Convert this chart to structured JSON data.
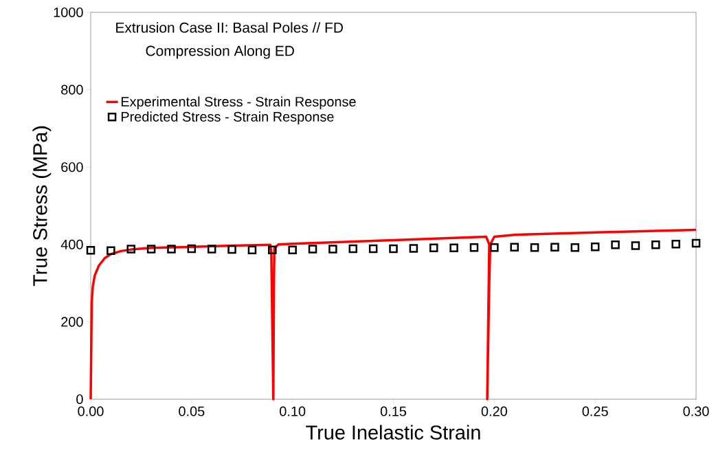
{
  "chart_data": {
    "type": "line",
    "xlabel": "True Inelastic Strain",
    "ylabel": "True Stress (MPa)",
    "annotations": [
      "Extrusion Case II: Basal Poles // FD",
      "Compression Along ED"
    ],
    "xlim": [
      0,
      0.3
    ],
    "ylim": [
      0,
      1000
    ],
    "xticks": [
      {
        "value": 0,
        "label": "0.00"
      },
      {
        "value": 0.05,
        "label": "0.05"
      },
      {
        "value": 0.1,
        "label": "0.10"
      },
      {
        "value": 0.15,
        "label": "0.15"
      },
      {
        "value": 0.2,
        "label": "0.20"
      },
      {
        "value": 0.25,
        "label": "0.25"
      },
      {
        "value": 0.3,
        "label": "0.30"
      }
    ],
    "yticks": [
      0,
      200,
      400,
      600,
      800,
      1000
    ],
    "grid": false,
    "legend": "top left",
    "series": [
      {
        "name": "Experimental Stress - Strain Response",
        "color": "#ff0000",
        "x": [
          0,
          0.0003,
          0.0005,
          0.001,
          0.002,
          0.004,
          0.007,
          0.01,
          0.015,
          0.02,
          0.03,
          0.05,
          0.07,
          0.089,
          0.0895,
          0.0905,
          0.0908,
          0.091,
          0.093,
          0.1,
          0.15,
          0.196,
          0.1975,
          0.1965,
          0.1975,
          0.198,
          0.2,
          0.21,
          0.25,
          0.3
        ],
        "values": [
          0,
          150,
          250,
          290,
          320,
          345,
          365,
          375,
          383,
          387,
          391,
          394,
          397,
          399,
          380,
          0,
          300,
          390,
          400,
          402,
          411,
          420,
          400,
          0,
          300,
          400,
          420,
          425,
          431,
          438
        ]
      },
      {
        "name": "Predicted Stress - Strain Response",
        "type": "scatter",
        "marker": "square",
        "color": "#000000",
        "x": [
          0,
          0.01,
          0.02,
          0.03,
          0.04,
          0.05,
          0.06,
          0.07,
          0.08,
          0.09,
          0.1,
          0.11,
          0.12,
          0.13,
          0.14,
          0.15,
          0.16,
          0.17,
          0.18,
          0.19,
          0.2,
          0.21,
          0.22,
          0.23,
          0.24,
          0.25,
          0.26,
          0.27,
          0.28,
          0.29,
          0.3
        ],
        "values": [
          385,
          384,
          388,
          388,
          388,
          389,
          388,
          387,
          386,
          386,
          386,
          388,
          388,
          389,
          389,
          389,
          390,
          391,
          391,
          392,
          392,
          393,
          392,
          393,
          392,
          394,
          399,
          397,
          399,
          401,
          403
        ]
      }
    ]
  }
}
